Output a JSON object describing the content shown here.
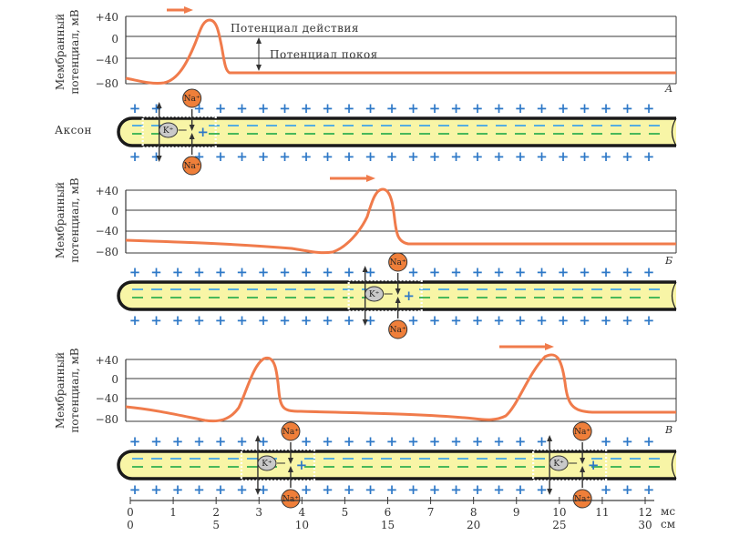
{
  "colors": {
    "trace": "#f07b4b",
    "axon_fill": "#f8f5a6",
    "axon_stroke": "#1a1a1a",
    "plus": "#2e78c7",
    "minus_outer": "#56aee0",
    "minus_inner": "#48b85a",
    "na_fill": "#ef7f3a",
    "k_fill": "#c9c9c9",
    "grid": "#3a3a3a",
    "bg": "#ffffff"
  },
  "ylabel_lines": [
    "Мембранный",
    "потенциал, мВ"
  ],
  "ytick_labels": [
    "+40",
    "0",
    "−40",
    "−80"
  ],
  "ion_labels": {
    "na": "Na⁺",
    "k": "K⁺"
  },
  "annotations": {
    "action_potential": "Потенциал действия",
    "resting_potential": "Потенциал покоя",
    "axon": "Аксон"
  },
  "panels": [
    {
      "letter": "А",
      "spikes_ms": [
        0.8
      ]
    },
    {
      "letter": "Б",
      "spikes_ms": [
        5.6
      ]
    },
    {
      "letter": "В",
      "spikes_ms": [
        3.1,
        9.9
      ]
    }
  ],
  "x_axis": {
    "ms_ticks": [
      "0",
      "1",
      "2",
      "3",
      "4",
      "5",
      "6",
      "7",
      "8",
      "9",
      "10",
      "11",
      "12"
    ],
    "ms_unit": "мс",
    "cm_ticks": [
      "0",
      "5",
      "10",
      "15",
      "20",
      "25",
      "30"
    ],
    "cm_unit": "см"
  },
  "chart_data": {
    "type": "line",
    "xlabel": "мс",
    "ylabel": "Мембранный потенциал, мВ",
    "ylim": [
      -80,
      40
    ],
    "series": [
      {
        "x": [
          0,
          0.5,
          1.5,
          1.9,
          2.1,
          2.3,
          2.55,
          12
        ],
        "y": [
          -70,
          -78,
          -40,
          35,
          32,
          -20,
          -70,
          -70
        ]
      },
      {
        "x": [
          0,
          2,
          4.6,
          5.5,
          5.9,
          6.1,
          6.35,
          12
        ],
        "y": [
          -62,
          -65,
          -80,
          35,
          30,
          -20,
          -68,
          -68
        ]
      },
      {
        "x": [
          0,
          1.9,
          2.9,
          3.4,
          3.6,
          3.8,
          6,
          9.3,
          10,
          10.3,
          10.6,
          12
        ],
        "y": [
          -65,
          -82,
          38,
          34,
          -20,
          -68,
          -75,
          -80,
          38,
          32,
          -20,
          -68
        ]
      }
    ]
  }
}
